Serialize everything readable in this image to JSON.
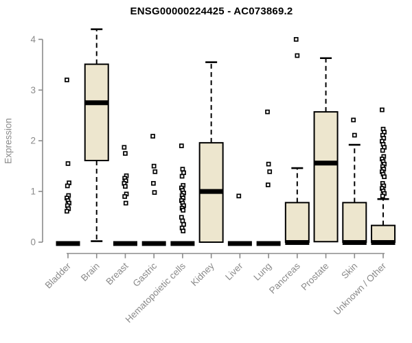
{
  "chart_data": {
    "type": "box",
    "title": "ENSG00000224425 - AC073869.2",
    "ylabel": "Expression",
    "xlabel": "",
    "ylim": [
      0,
      4.3
    ],
    "yticks": [
      0,
      1,
      2,
      3,
      4
    ],
    "grid": false,
    "legend_position": "none",
    "colors": {
      "box_fill": "#EDE6CE",
      "box_stroke": "#000000",
      "median": "#000000",
      "whisker": "#000000",
      "outlier_stroke": "#000000",
      "outlier_fill": "#ffffff",
      "axis": "#8a8a8a",
      "tick_label": "#8a8a8a",
      "title": "#000000"
    },
    "categories": [
      "Bladder",
      "Brain",
      "Breast",
      "Gastric",
      "Hematopoietic cells",
      "Kidney",
      "Liver",
      "Lung",
      "Pancreas",
      "Prostate",
      "Skin",
      "Unknown / Other"
    ],
    "boxes": [
      {
        "category": "Bladder",
        "q1": 0,
        "median": 0,
        "q3": 0,
        "whisker_low": 0,
        "whisker_high": 0,
        "outliers": [
          3.2,
          1.55,
          1.17,
          1.11,
          0.92,
          0.87,
          0.82,
          0.77,
          0.72,
          0.66,
          0.61
        ]
      },
      {
        "category": "Brain",
        "q1": 1.61,
        "median": 2.75,
        "q3": 3.51,
        "whisker_low": 0.02,
        "whisker_high": 4.2,
        "outliers": []
      },
      {
        "category": "Breast",
        "q1": 0,
        "median": 0,
        "q3": 0,
        "whisker_low": 0,
        "whisker_high": 0,
        "outliers": [
          1.87,
          1.75,
          1.31,
          1.26,
          1.21,
          1.16,
          1.1,
          0.95,
          0.9,
          0.77
        ]
      },
      {
        "category": "Gastric",
        "q1": 0,
        "median": 0,
        "q3": 0,
        "whisker_low": 0,
        "whisker_high": 0,
        "outliers": [
          2.09,
          1.5,
          1.39,
          1.16,
          0.98
        ]
      },
      {
        "category": "Hematopoietic cells",
        "q1": 0,
        "median": 0,
        "q3": 0,
        "whisker_low": 0,
        "whisker_high": 0,
        "outliers": [
          1.9,
          1.44,
          1.37,
          1.3,
          1.12,
          1.07,
          1.02,
          0.97,
          0.92,
          0.87,
          0.82,
          0.77,
          0.72,
          0.67,
          0.63,
          0.49,
          0.42,
          0.35,
          0.28,
          0.22
        ]
      },
      {
        "category": "Kidney",
        "q1": 0,
        "median": 1.0,
        "q3": 1.96,
        "whisker_low": 0,
        "whisker_high": 3.55,
        "outliers": []
      },
      {
        "category": "Liver",
        "q1": 0,
        "median": 0,
        "q3": 0,
        "whisker_low": 0,
        "whisker_high": 0,
        "outliers": [
          0.91
        ]
      },
      {
        "category": "Lung",
        "q1": 0,
        "median": 0,
        "q3": 0,
        "whisker_low": 0,
        "whisker_high": 0,
        "outliers": [
          2.57,
          1.54,
          1.39,
          1.13
        ]
      },
      {
        "category": "Pancreas",
        "q1": 0,
        "median": 0.02,
        "q3": 0.78,
        "whisker_low": 0,
        "whisker_high": 1.46,
        "outliers": [
          4.0,
          3.68
        ]
      },
      {
        "category": "Prostate",
        "q1": 0.01,
        "median": 1.56,
        "q3": 2.57,
        "whisker_low": 0.01,
        "whisker_high": 3.63,
        "outliers": []
      },
      {
        "category": "Skin",
        "q1": 0,
        "median": 0.02,
        "q3": 0.78,
        "whisker_low": 0,
        "whisker_high": 1.92,
        "outliers": [
          2.41,
          2.11
        ]
      },
      {
        "category": "Unknown / Other",
        "q1": 0,
        "median": 0.02,
        "q3": 0.33,
        "whisker_low": 0,
        "whisker_high": 0.85,
        "outliers": [
          2.61,
          2.23,
          2.17,
          2.11,
          2.05,
          1.99,
          1.93,
          1.87,
          1.81,
          1.69,
          1.64,
          1.59,
          1.54,
          1.49,
          1.44,
          1.39,
          1.34,
          1.29,
          1.16,
          1.11,
          1.06,
          1.01,
          0.96,
          0.91
        ]
      }
    ]
  }
}
